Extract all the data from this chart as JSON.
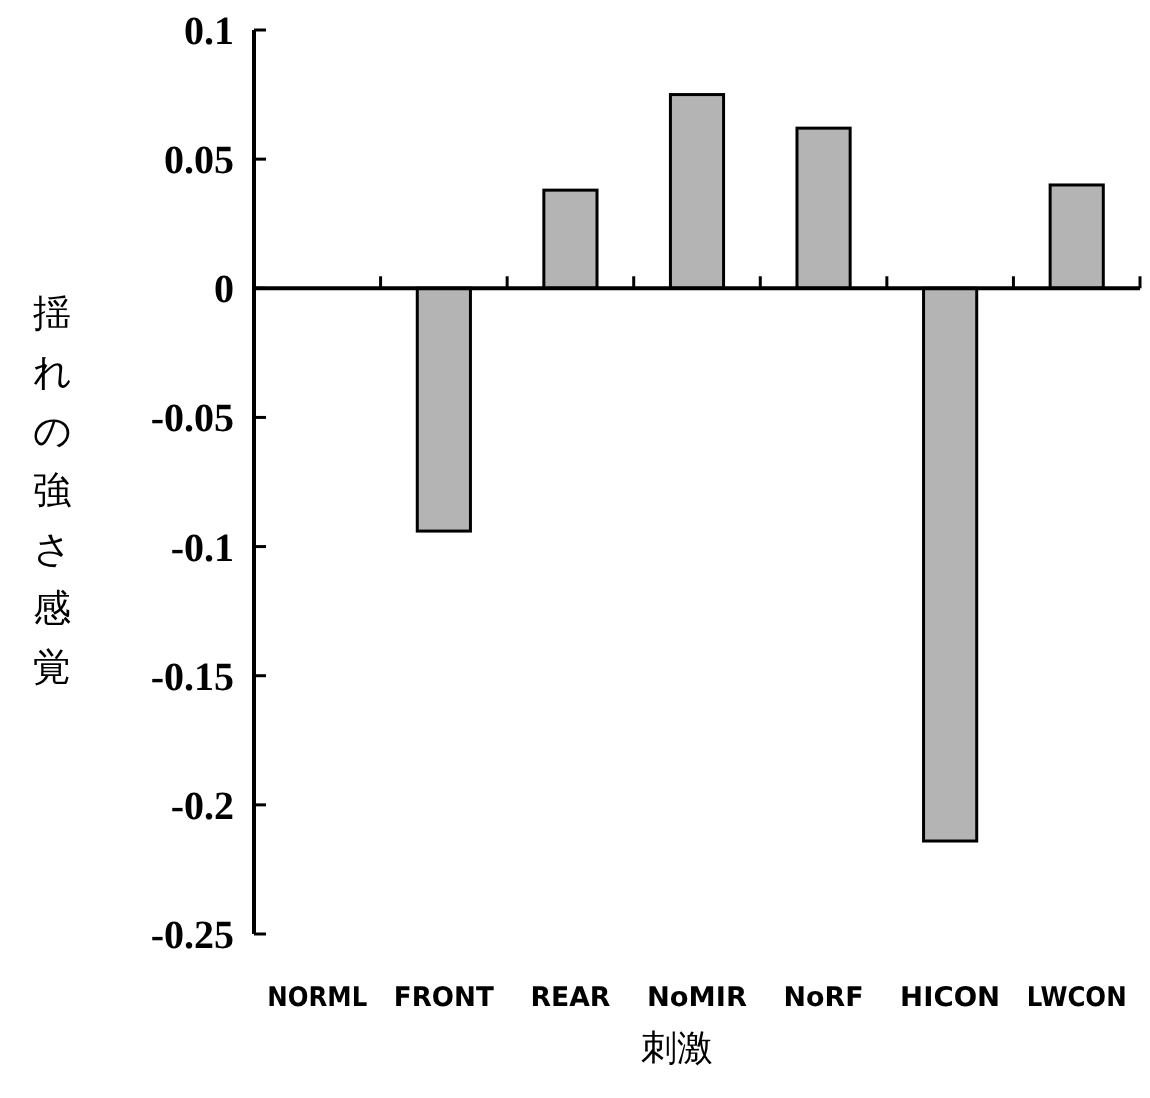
{
  "chart_data": {
    "type": "bar",
    "xlabel": "刺激",
    "ylabel": "揺れの強さ感覚",
    "categories": [
      "NORML",
      "FRONT",
      "REAR",
      "NoMIR",
      "NoRF",
      "HICON",
      "LWCON"
    ],
    "values": [
      0,
      -0.094,
      0.038,
      0.075,
      0.062,
      -0.214,
      0.04
    ],
    "color": "#b4b4b4",
    "ylim": [
      -0.25,
      0.1
    ],
    "yticks": [
      0.1,
      0.05,
      0,
      -0.05,
      -0.1,
      -0.15,
      -0.2,
      -0.25
    ]
  }
}
